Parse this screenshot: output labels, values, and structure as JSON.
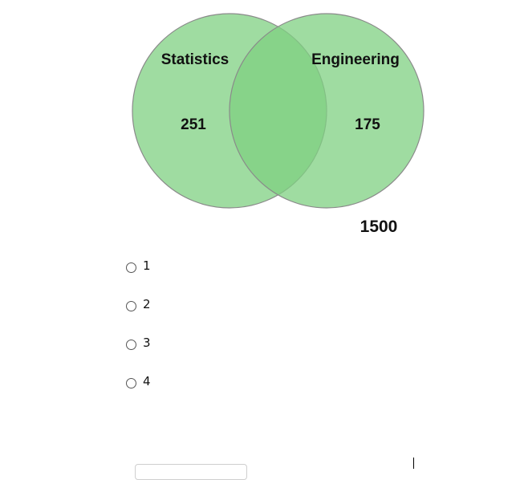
{
  "venn": {
    "left_set_label": "Statistics",
    "right_set_label": "Engineering",
    "left_only_value": "251",
    "right_only_value": "175",
    "intersection_value": "",
    "total_value": "1500",
    "circle_fill": "#7fd081",
    "circle_stroke": "#8a8a8a"
  },
  "options": [
    {
      "label": "1"
    },
    {
      "label": "2"
    },
    {
      "label": "3"
    },
    {
      "label": "4"
    }
  ]
}
